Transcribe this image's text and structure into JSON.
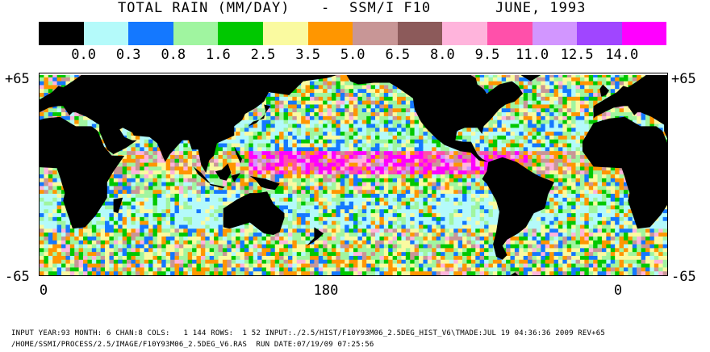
{
  "header": {
    "title": "TOTAL RAIN (MM/DAY)",
    "separator": "-",
    "instrument": "SSM/I F10",
    "date": "JUNE, 1993"
  },
  "legend": {
    "colors": [
      "#000000",
      "#b4fafa",
      "#1478ff",
      "#a0f5a0",
      "#00c800",
      "#fafaa0",
      "#ff9600",
      "#c89696",
      "#8c5a5a",
      "#ffb4dc",
      "#ff50aa",
      "#d296ff",
      "#a046ff",
      "#ff00ff"
    ],
    "labels": [
      "0.0",
      "0.3",
      "0.8",
      "1.6",
      "2.5",
      "3.5",
      "5.0",
      "6.5",
      "8.0",
      "9.5",
      "11.0",
      "12.5",
      "14.0"
    ]
  },
  "map": {
    "lat_top_left": "+65",
    "lat_top_right": "+65",
    "lat_bottom_left": "-65",
    "lat_bottom_right": "-65",
    "lon_labels": [
      "0",
      "180",
      "0"
    ]
  },
  "footer": {
    "line1": "INPUT YEAR:93 MONTH: 6 CHAN:8 COLS:   1 144 ROWS:  1 52 INPUT:./2.5/HIST/F10Y93M06_2.5DEG_HIST_V6\\TMADE:JUL 19 04:36:36 2009 REV+65",
    "line2": "/HOME/SSMI/PROCESS/2.5/IMAGE/F10Y93M06_2.5DEG_V6.RAS  RUN DATE:07/19/09 07:25:56"
  }
}
